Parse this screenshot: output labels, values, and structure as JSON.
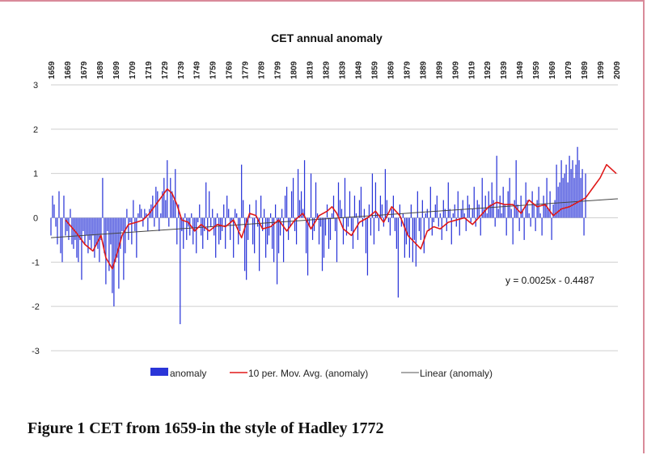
{
  "chart_data": {
    "type": "bar",
    "title": "CET  annual anomaly",
    "x_tick_labels": [
      "1659",
      "1669",
      "1679",
      "1689",
      "1699",
      "1709",
      "1719",
      "1729",
      "1739",
      "1749",
      "1759",
      "1769",
      "1779",
      "1789",
      "1799",
      "1809",
      "1819",
      "1829",
      "1839",
      "1849",
      "1859",
      "1869",
      "1879",
      "1889",
      "1899",
      "1909",
      "1919",
      "1929",
      "1939",
      "1949",
      "1959",
      "1969",
      "1979",
      "1989",
      "1999",
      "2009"
    ],
    "y_ticks": [
      "3",
      "2",
      "1",
      "0",
      "-1",
      "-2",
      "-3"
    ],
    "ylim": [
      -3,
      3
    ],
    "xlim": [
      1659,
      2010
    ],
    "grid": true,
    "legend": [
      "anomaly",
      "10 per. Mov. Avg. (anomaly)",
      "Linear (anomaly)"
    ],
    "annotation": "y = 0.0025x - 0.4487",
    "trendline": {
      "slope": 0.0025,
      "intercept": -0.4487
    },
    "series": [
      {
        "name": "anomaly",
        "color": "#2a35d8",
        "x_start": 1659,
        "values": [
          -0.4,
          0.5,
          0.3,
          -0.2,
          -0.6,
          0.6,
          -0.8,
          -1.0,
          0.5,
          -0.4,
          -0.3,
          -0.5,
          0.2,
          -0.6,
          -0.7,
          -0.5,
          -0.9,
          -1.0,
          -0.5,
          -1.4,
          -0.3,
          -0.6,
          -0.4,
          -0.8,
          -0.5,
          -0.7,
          -0.4,
          -0.9,
          -0.6,
          -0.7,
          -1.0,
          -0.5,
          0.9,
          -0.8,
          -1.5,
          -0.3,
          -1.2,
          -0.6,
          -1.7,
          -2.0,
          -1.0,
          -0.9,
          -1.6,
          -0.7,
          -0.3,
          -1.4,
          -0.8,
          0.2,
          -0.5,
          -0.1,
          -0.6,
          0.4,
          -0.3,
          -0.9,
          0.1,
          0.3,
          0.2,
          -0.2,
          0.2,
          0.1,
          -0.3,
          0.2,
          0.3,
          0.5,
          -0.2,
          0.7,
          0.6,
          -0.3,
          0.1,
          0.6,
          0.9,
          0.4,
          1.3,
          -0.2,
          0.9,
          0.6,
          0.4,
          1.1,
          -0.6,
          0.3,
          -2.4,
          -0.3,
          -0.7,
          0.1,
          -0.5,
          -0.2,
          -0.4,
          0.1,
          -0.6,
          -0.3,
          -0.8,
          -0.1,
          0.3,
          -0.4,
          -0.7,
          -0.3,
          0.8,
          -0.5,
          0.6,
          -0.2,
          0.2,
          -0.4,
          -0.9,
          0.1,
          -0.6,
          -0.5,
          -0.3,
          0.3,
          -0.7,
          0.5,
          0.2,
          -0.5,
          -0.1,
          -0.9,
          0.2,
          0.1,
          -0.6,
          -0.3,
          1.2,
          0.4,
          -1.2,
          -1.4,
          -0.5,
          0.3,
          0.0,
          -0.6,
          -0.8,
          0.4,
          -0.2,
          -1.2,
          0.5,
          -0.3,
          0.2,
          -0.9,
          -0.6,
          -0.4,
          0.1,
          -0.7,
          -1.0,
          0.3,
          -1.5,
          -0.8,
          -0.4,
          0.2,
          -1.0,
          0.5,
          0.7,
          -0.5,
          -0.2,
          0.6,
          0.9,
          -0.3,
          -0.6,
          1.1,
          0.4,
          0.6,
          0.2,
          1.3,
          -0.8,
          -1.3,
          -0.2,
          1.0,
          -0.5,
          -0.3,
          0.8,
          0.1,
          -0.6,
          -0.2,
          -1.2,
          -0.9,
          -0.4,
          0.3,
          -0.7,
          -0.5,
          0.1,
          0.5,
          -0.3,
          -1.0,
          0.8,
          0.4,
          0.2,
          -0.6,
          0.9,
          -0.4,
          -0.2,
          0.6,
          -0.3,
          -0.7,
          0.5,
          0.1,
          -0.5,
          0.4,
          0.7,
          -0.2,
          0.2,
          -0.8,
          -1.3,
          0.3,
          -0.4,
          1.0,
          -0.6,
          0.8,
          0.1,
          -0.3,
          0.5,
          0.3,
          -0.2,
          1.1,
          0.4,
          -0.1,
          -0.4,
          0.2,
          0.5,
          -0.3,
          -0.7,
          -1.8,
          0.3,
          -0.2,
          0.1,
          -0.9,
          -0.6,
          -0.4,
          -0.9,
          0.3,
          -1.0,
          -0.5,
          -1.1,
          0.6,
          -0.3,
          -0.5,
          0.4,
          -0.8,
          0.1,
          0.2,
          -0.3,
          0.7,
          -0.4,
          -0.1,
          0.3,
          0.5,
          -0.2,
          0.1,
          -0.5,
          0.4,
          0.2,
          -0.3,
          0.8,
          0.2,
          -0.6,
          0.1,
          0.3,
          -0.2,
          0.6,
          -0.4,
          0.2,
          0.4,
          0.1,
          -0.3,
          0.5,
          0.3,
          -0.1,
          0.2,
          0.7,
          -0.2,
          0.4,
          0.3,
          -0.4,
          0.9,
          0.2,
          0.5,
          0.1,
          0.6,
          0.3,
          0.8,
          0.4,
          -0.2,
          1.4,
          0.2,
          0.5,
          0.1,
          0.7,
          0.3,
          -0.4,
          0.6,
          0.9,
          0.2,
          -0.6,
          0.4,
          1.3,
          0.3,
          -0.3,
          0.5,
          0.2,
          -0.5,
          0.8,
          0.4,
          0.1,
          -0.2,
          0.6,
          0.3,
          -0.3,
          0.4,
          0.7,
          0.1,
          -0.4,
          0.5,
          0.3,
          0.9,
          0.2,
          0.6,
          -0.5,
          0.3,
          0.4,
          1.2,
          0.7,
          0.8,
          1.3,
          0.9,
          1.0,
          1.2,
          0.8,
          1.4,
          1.1,
          1.3,
          0.9,
          1.2,
          1.6,
          1.3,
          0.9,
          1.1,
          -0.4,
          1.0
        ]
      },
      {
        "name": "10 per. Mov. Avg. (anomaly)",
        "color": "#e01818",
        "x": [
          1668,
          1675,
          1680,
          1685,
          1690,
          1693,
          1697,
          1700,
          1703,
          1707,
          1712,
          1716,
          1720,
          1724,
          1728,
          1731,
          1734,
          1737,
          1740,
          1744,
          1748,
          1752,
          1757,
          1762,
          1767,
          1772,
          1777,
          1782,
          1786,
          1790,
          1795,
          1800,
          1805,
          1810,
          1815,
          1820,
          1825,
          1830,
          1833,
          1836,
          1840,
          1845,
          1850,
          1855,
          1860,
          1865,
          1870,
          1875,
          1880,
          1884,
          1888,
          1892,
          1896,
          1900,
          1905,
          1910,
          1915,
          1920,
          1925,
          1930,
          1935,
          1940,
          1945,
          1950,
          1955,
          1960,
          1965,
          1970,
          1975,
          1980,
          1985,
          1990,
          1995,
          1999,
          2003,
          2006,
          2009
        ],
        "values": [
          -0.05,
          -0.35,
          -0.6,
          -0.75,
          -0.4,
          -0.9,
          -1.15,
          -0.8,
          -0.4,
          -0.15,
          -0.1,
          -0.05,
          0.1,
          0.3,
          0.5,
          0.65,
          0.55,
          0.3,
          -0.05,
          -0.1,
          -0.3,
          -0.15,
          -0.3,
          -0.15,
          -0.2,
          -0.05,
          -0.45,
          0.1,
          0.05,
          -0.25,
          -0.2,
          -0.05,
          -0.3,
          -0.05,
          0.1,
          -0.25,
          0.05,
          0.15,
          0.25,
          0.1,
          -0.25,
          -0.4,
          -0.1,
          0.0,
          0.15,
          -0.1,
          0.25,
          0.05,
          -0.4,
          -0.55,
          -0.7,
          -0.3,
          -0.2,
          -0.25,
          -0.1,
          -0.05,
          0.0,
          -0.15,
          0.05,
          0.25,
          0.35,
          0.3,
          0.3,
          0.1,
          0.4,
          0.25,
          0.3,
          0.05,
          0.2,
          0.25,
          0.35,
          0.45,
          0.7,
          0.9,
          1.2,
          1.1,
          1.0
        ]
      }
    ]
  },
  "caption": "Figure 1 CET from 1659-in the style of Hadley 1772"
}
